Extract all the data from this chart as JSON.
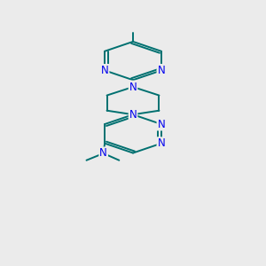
{
  "bg_color": "#ebebeb",
  "bond_color": "#007070",
  "atom_color": "#0000ee",
  "bond_width": 1.4,
  "font_size": 8.5,
  "fig_size": [
    3.0,
    3.0
  ],
  "dpi": 100,
  "xlim": [
    0,
    10
  ],
  "ylim": [
    0,
    17
  ]
}
